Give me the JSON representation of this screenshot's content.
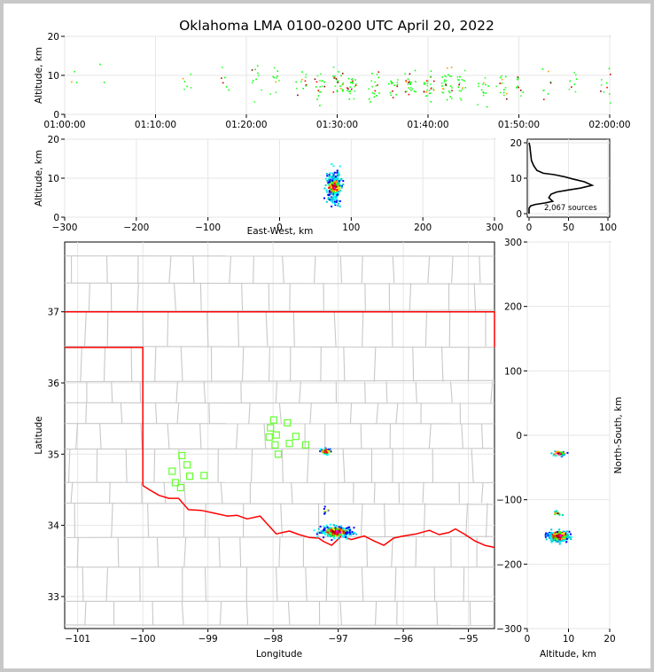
{
  "title": "Oklahoma LMA 0100-0200 UTC April 20, 2022",
  "colors": {
    "frame_bg": "#c8c8c8",
    "state_border": "#ff0000",
    "county_lines": "#c8c8c8",
    "station_marker": "#66ff33",
    "histogram_line": "#000000"
  },
  "panels": {
    "time_height": {
      "ylabel": "Altitude, km",
      "yticks": [
        "0",
        "10",
        "20"
      ],
      "xticks": [
        "01:00:00",
        "01:10:00",
        "01:20:00",
        "01:30:00",
        "01:40:00",
        "01:50:00",
        "02:00:00"
      ],
      "xlim_minutes_utc": [
        60,
        120
      ],
      "ylim_km": [
        0,
        20
      ]
    },
    "ew_height": {
      "ylabel": "Altitude, km",
      "xlabel": "East-West, km",
      "yticks": [
        "0",
        "10",
        "20"
      ],
      "xticks": [
        "−300",
        "−200",
        "−100",
        "0",
        "100",
        "200",
        "300"
      ],
      "xlim_km": [
        -300,
        300
      ],
      "ylim_km": [
        0,
        20
      ]
    },
    "histogram": {
      "yticks": [
        "0",
        "10",
        "20"
      ],
      "xticks": [
        "0",
        "50",
        "100"
      ],
      "annotation": "2,067 sources",
      "xlim": [
        0,
        100
      ],
      "ylim_km": [
        0,
        20
      ]
    },
    "map": {
      "xlabel": "Longitude",
      "ylabel": "Latitude",
      "xticks": [
        "−101",
        "−100",
        "−99",
        "−98",
        "−97",
        "−96",
        "−95"
      ],
      "yticks": [
        "33",
        "34",
        "35",
        "36",
        "37"
      ],
      "xlim_deg": [
        -101.2,
        -94.6
      ],
      "ylim_deg": [
        32.55,
        37.98
      ]
    },
    "ns_height": {
      "ylabel": "North-South, km",
      "xlabel": "Altitude, km",
      "yticks": [
        "−300",
        "−200",
        "−100",
        "0",
        "100",
        "200",
        "300"
      ],
      "xticks": [
        "0",
        "10",
        "20"
      ],
      "xlim_km": [
        0,
        20
      ],
      "ylim_km": [
        -300,
        300
      ]
    }
  },
  "chart_data": [
    {
      "type": "scatter",
      "panel": "time_height",
      "description_series": "LMA VHF source density, time vs altitude",
      "xlabel": "",
      "ylabel": "Altitude, km",
      "clusters": [
        {
          "x_minutes": 61,
          "y_km": 10.5,
          "count": 3
        },
        {
          "x_minutes": 64,
          "y_km": 11,
          "count": 2
        },
        {
          "x_minutes": 73.5,
          "y_km": 9.5,
          "count": 6
        },
        {
          "x_minutes": 77.5,
          "y_km": 8.5,
          "count": 6
        },
        {
          "x_minutes": 81,
          "y_km": 9.5,
          "count": 10
        },
        {
          "x_minutes": 83,
          "y_km": 9,
          "count": 10
        },
        {
          "x_minutes": 86,
          "y_km": 8,
          "count": 12
        },
        {
          "x_minutes": 88,
          "y_km": 7.5,
          "count": 18
        },
        {
          "x_minutes": 90,
          "y_km": 7.5,
          "count": 25
        },
        {
          "x_minutes": 91.5,
          "y_km": 7,
          "count": 22
        },
        {
          "x_minutes": 94,
          "y_km": 7.5,
          "count": 18
        },
        {
          "x_minutes": 96,
          "y_km": 7.5,
          "count": 16
        },
        {
          "x_minutes": 98,
          "y_km": 8,
          "count": 25
        },
        {
          "x_minutes": 100,
          "y_km": 7.5,
          "count": 28
        },
        {
          "x_minutes": 102,
          "y_km": 7.5,
          "count": 30
        },
        {
          "x_minutes": 103.5,
          "y_km": 7.5,
          "count": 18
        },
        {
          "x_minutes": 106,
          "y_km": 6.5,
          "count": 14
        },
        {
          "x_minutes": 108,
          "y_km": 7,
          "count": 14
        },
        {
          "x_minutes": 110,
          "y_km": 7,
          "count": 10
        },
        {
          "x_minutes": 113,
          "y_km": 7.5,
          "count": 8
        },
        {
          "x_minutes": 116,
          "y_km": 8,
          "count": 8
        },
        {
          "x_minutes": 119.5,
          "y_km": 7.5,
          "count": 10
        }
      ]
    },
    {
      "type": "scatter",
      "panel": "ew_height",
      "xlabel": "East-West, km",
      "ylabel": "Altitude, km",
      "clusters": [
        {
          "x_km": 75,
          "y_km": 8,
          "count": 260,
          "spread_x": 11,
          "spread_y": 2.4
        }
      ]
    },
    {
      "type": "line",
      "panel": "histogram",
      "annotation": "2,067 sources",
      "points": [
        [
          0,
          20
        ],
        [
          1,
          19
        ],
        [
          2,
          17
        ],
        [
          3,
          15
        ],
        [
          6,
          13.5
        ],
        [
          10,
          12.2
        ],
        [
          18,
          11.4
        ],
        [
          32,
          11
        ],
        [
          45,
          10.4
        ],
        [
          55,
          9.8
        ],
        [
          70,
          9
        ],
        [
          80,
          8
        ],
        [
          65,
          7.2
        ],
        [
          48,
          6.6
        ],
        [
          35,
          6.1
        ],
        [
          28,
          5.5
        ],
        [
          25,
          4.5
        ],
        [
          30,
          3.5
        ],
        [
          20,
          3
        ],
        [
          8,
          2.6
        ],
        [
          2,
          2.2
        ],
        [
          0,
          1.5
        ],
        [
          0,
          0
        ]
      ]
    },
    {
      "type": "scatter",
      "panel": "map",
      "xlabel": "Longitude",
      "ylabel": "Latitude",
      "clusters": [
        {
          "lon": -97.2,
          "lat": 35.05,
          "count": 55,
          "spread_lon": 0.08,
          "spread_lat": 0.04
        },
        {
          "lon": -97.05,
          "lat": 33.92,
          "count": 260,
          "spread_lon": 0.2,
          "spread_lat": 0.07
        },
        {
          "lon": -97.2,
          "lat": 34.22,
          "count": 8,
          "spread_lon": 0.04,
          "spread_lat": 0.04
        }
      ],
      "stations": [
        [
          -97.99,
          35.48
        ],
        [
          -98.04,
          35.37
        ],
        [
          -98.06,
          35.24
        ],
        [
          -97.95,
          35.27
        ],
        [
          -97.78,
          35.44
        ],
        [
          -97.65,
          35.25
        ],
        [
          -97.75,
          35.15
        ],
        [
          -97.5,
          35.13
        ],
        [
          -97.97,
          35.13
        ],
        [
          -97.92,
          35.0
        ],
        [
          -99.4,
          34.98
        ],
        [
          -99.32,
          34.85
        ],
        [
          -99.55,
          34.76
        ],
        [
          -99.28,
          34.69
        ],
        [
          -99.06,
          34.7
        ],
        [
          -99.5,
          34.6
        ],
        [
          -99.42,
          34.53
        ]
      ]
    },
    {
      "type": "scatter",
      "panel": "ns_height",
      "xlabel": "Altitude, km",
      "ylabel": "North-South, km",
      "clusters": [
        {
          "x_km": 7.5,
          "y_km": -155,
          "count": 280,
          "spread_x": 2.4,
          "spread_y": 8
        },
        {
          "x_km": 7.5,
          "y_km": -27,
          "count": 40,
          "spread_x": 1.6,
          "spread_y": 4
        },
        {
          "x_km": 7,
          "y_km": -120,
          "count": 10,
          "spread_x": 1.0,
          "spread_y": 3
        }
      ]
    }
  ]
}
